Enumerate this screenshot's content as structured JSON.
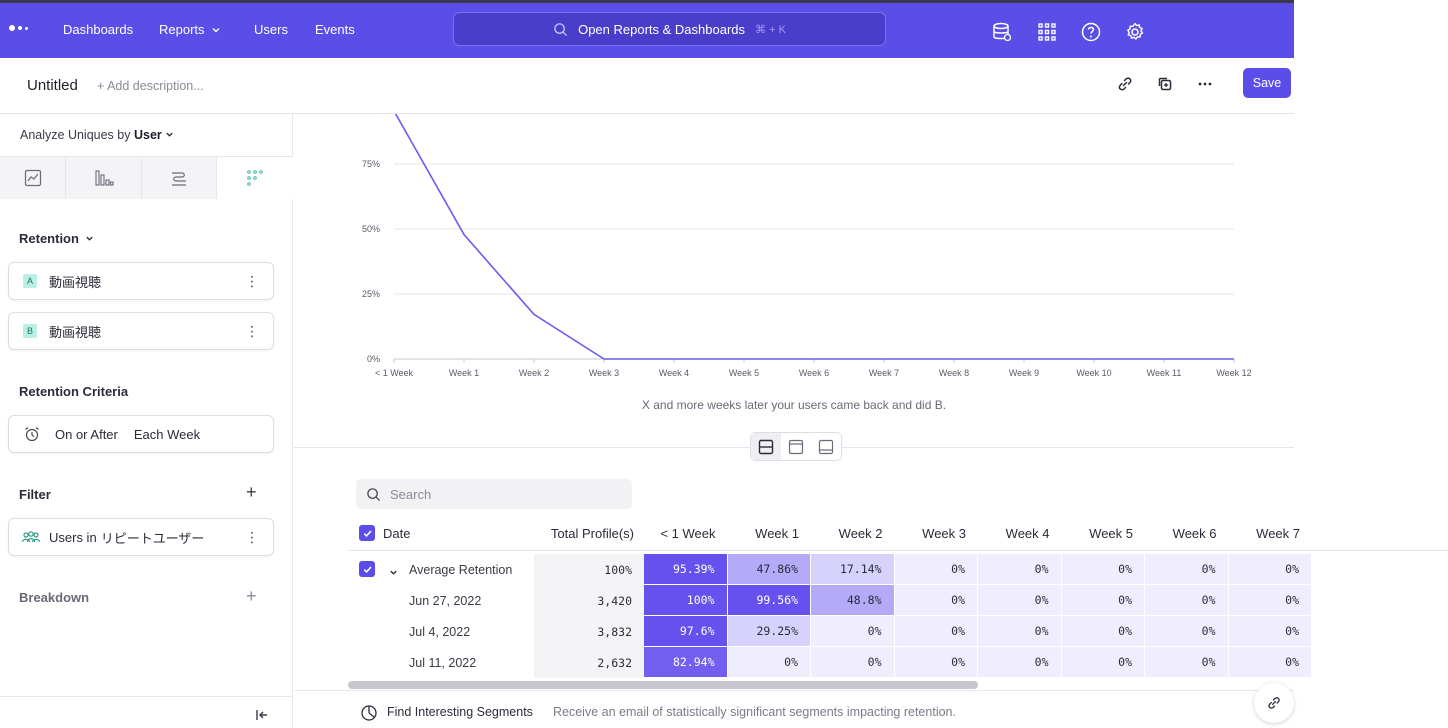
{
  "nav": {
    "items": [
      "Dashboards",
      "Reports",
      "Users",
      "Events"
    ],
    "search_label": "Open Reports & Dashboards",
    "search_shortcut": "⌘ + K"
  },
  "report": {
    "title": "Untitled",
    "add_description": "+ Add description...",
    "save_label": "Save"
  },
  "sidebar": {
    "analyze_prefix": "Analyze Uniques by",
    "analyze_value": "User",
    "retention_title": "Retention",
    "events": [
      {
        "badge": "A",
        "name": "動画視聴"
      },
      {
        "badge": "B",
        "name": "動画視聴"
      }
    ],
    "criteria_title": "Retention Criteria",
    "criteria_when": "On or After",
    "criteria_period": "Each Week",
    "filter_title": "Filter",
    "filter_prefix": "Users in",
    "filter_value": "リピートユーザー",
    "breakdown_title": "Breakdown"
  },
  "chart_data": {
    "type": "line",
    "x": [
      "< 1 Week",
      "Week 1",
      "Week 2",
      "Week 3",
      "Week 4",
      "Week 5",
      "Week 6",
      "Week 7",
      "Week 8",
      "Week 9",
      "Week 10",
      "Week 11",
      "Week 12"
    ],
    "y_ticks": [
      "0%",
      "25%",
      "50%",
      "75%"
    ],
    "ylim": [
      0,
      100
    ],
    "series": [
      {
        "values": [
          95.39,
          47.86,
          17.14,
          0,
          0,
          0,
          0,
          0,
          0,
          0,
          0,
          0,
          0
        ],
        "color": "#6a5cf0"
      }
    ],
    "grid": true,
    "caption": "X and more weeks later your users came back and did B."
  },
  "table": {
    "search_placeholder": "Search",
    "columns": [
      "Date",
      "Total Profile(s)",
      "< 1 Week",
      "Week 1",
      "Week 2",
      "Week 3",
      "Week 4",
      "Week 5",
      "Week 6",
      "Week 7"
    ],
    "rows": [
      {
        "label": "Average Retention",
        "total": "100%",
        "cells": [
          "95.39%",
          "47.86%",
          "17.14%",
          "0%",
          "0%",
          "0%",
          "0%",
          "0%"
        ]
      },
      {
        "label": "Jun 27, 2022",
        "total": "3,420",
        "cells": [
          "100%",
          "99.56%",
          "48.8%",
          "0%",
          "0%",
          "0%",
          "0%",
          "0%"
        ]
      },
      {
        "label": "Jul 4, 2022",
        "total": "3,832",
        "cells": [
          "97.6%",
          "29.25%",
          "0%",
          "0%",
          "0%",
          "0%",
          "0%",
          "0%"
        ]
      },
      {
        "label": "Jul 11, 2022",
        "total": "2,632",
        "cells": [
          "82.94%",
          "0%",
          "0%",
          "0%",
          "0%",
          "0%",
          "0%",
          "0%"
        ]
      }
    ]
  },
  "footer": {
    "title": "Find Interesting Segments",
    "description": "Receive an email of statistically significant segments impacting retention."
  },
  "colors": {
    "brand": "#5b4de8",
    "line": "#6a5cf0"
  }
}
